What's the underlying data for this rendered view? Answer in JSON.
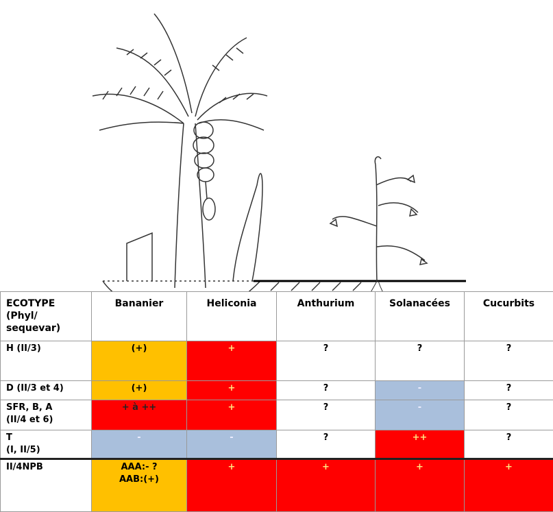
{
  "table": {
    "header": [
      "ECOTYPE\n(Phyl/\nsequevar)",
      "Bananier",
      "Heliconia",
      "Anthurium",
      "Solanacées",
      "Cucurbits"
    ],
    "rows": [
      [
        "H (II/3)",
        "(+)",
        "+",
        "?",
        "?",
        "?"
      ],
      [
        "D (II/3 et 4)",
        "(+)",
        "+",
        "?",
        "-",
        "?"
      ],
      [
        "SFR, B, A\n(II/4 et 6)",
        "+ à ++",
        "+",
        "?",
        "-",
        "?"
      ],
      [
        "T\n(I, II/5)",
        "-",
        "-",
        "?",
        "++",
        "?"
      ],
      [
        "II/4NPB",
        "AAA:- ?\nAAB:(+)",
        "+",
        "+",
        "+",
        "+"
      ]
    ]
  }
}
